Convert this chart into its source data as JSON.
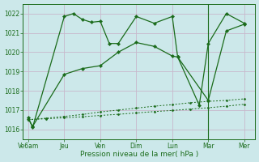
{
  "x_labels": [
    "Ve6am",
    "Jeu",
    "Ven",
    "Dim",
    "Lun",
    "Mar",
    "Mer"
  ],
  "line_color": "#1a6b1a",
  "bg_color": "#cce8ea",
  "grid_color": "#c8b8cc",
  "xlabel": "Pression niveau de la mer( hPa )",
  "ylim": [
    1015.5,
    1022.5
  ],
  "yticks": [
    1016,
    1017,
    1018,
    1019,
    1020,
    1021,
    1022
  ],
  "line1_x": [
    0,
    0.12,
    1.0,
    1.25,
    1.5,
    1.75,
    2.0,
    2.25,
    2.5,
    3.0,
    3.5,
    4.0,
    4.15,
    4.75,
    5.0,
    5.5,
    6.0
  ],
  "line1_y": [
    1016.6,
    1016.1,
    1021.85,
    1022.0,
    1021.7,
    1021.55,
    1021.6,
    1020.45,
    1020.45,
    1021.85,
    1021.5,
    1021.85,
    1019.75,
    1017.25,
    1020.45,
    1022.0,
    1021.5
  ],
  "line2_x": [
    0,
    0.12,
    1.0,
    1.5,
    2.0,
    2.5,
    3.0,
    3.5,
    4.0,
    4.15,
    5.0,
    5.5,
    6.0
  ],
  "line2_y": [
    1016.55,
    1016.15,
    1018.85,
    1019.15,
    1019.3,
    1020.0,
    1020.5,
    1020.3,
    1019.8,
    1019.75,
    1017.5,
    1021.1,
    1021.45
  ],
  "line3_x": [
    0,
    0.5,
    1.0,
    1.5,
    2.0,
    2.5,
    3.0,
    3.5,
    4.0,
    4.5,
    5.0,
    5.5,
    6.0
  ],
  "line3_y": [
    1016.5,
    1016.58,
    1016.67,
    1016.77,
    1016.9,
    1017.0,
    1017.1,
    1017.2,
    1017.28,
    1017.38,
    1017.45,
    1017.5,
    1017.58
  ],
  "line4_x": [
    0,
    0.5,
    1.0,
    1.5,
    2.0,
    2.5,
    3.0,
    3.5,
    4.0,
    4.5,
    5.0,
    5.5,
    6.0
  ],
  "line4_y": [
    1016.5,
    1016.55,
    1016.6,
    1016.65,
    1016.72,
    1016.78,
    1016.85,
    1016.92,
    1016.98,
    1017.05,
    1017.12,
    1017.2,
    1017.3
  ]
}
